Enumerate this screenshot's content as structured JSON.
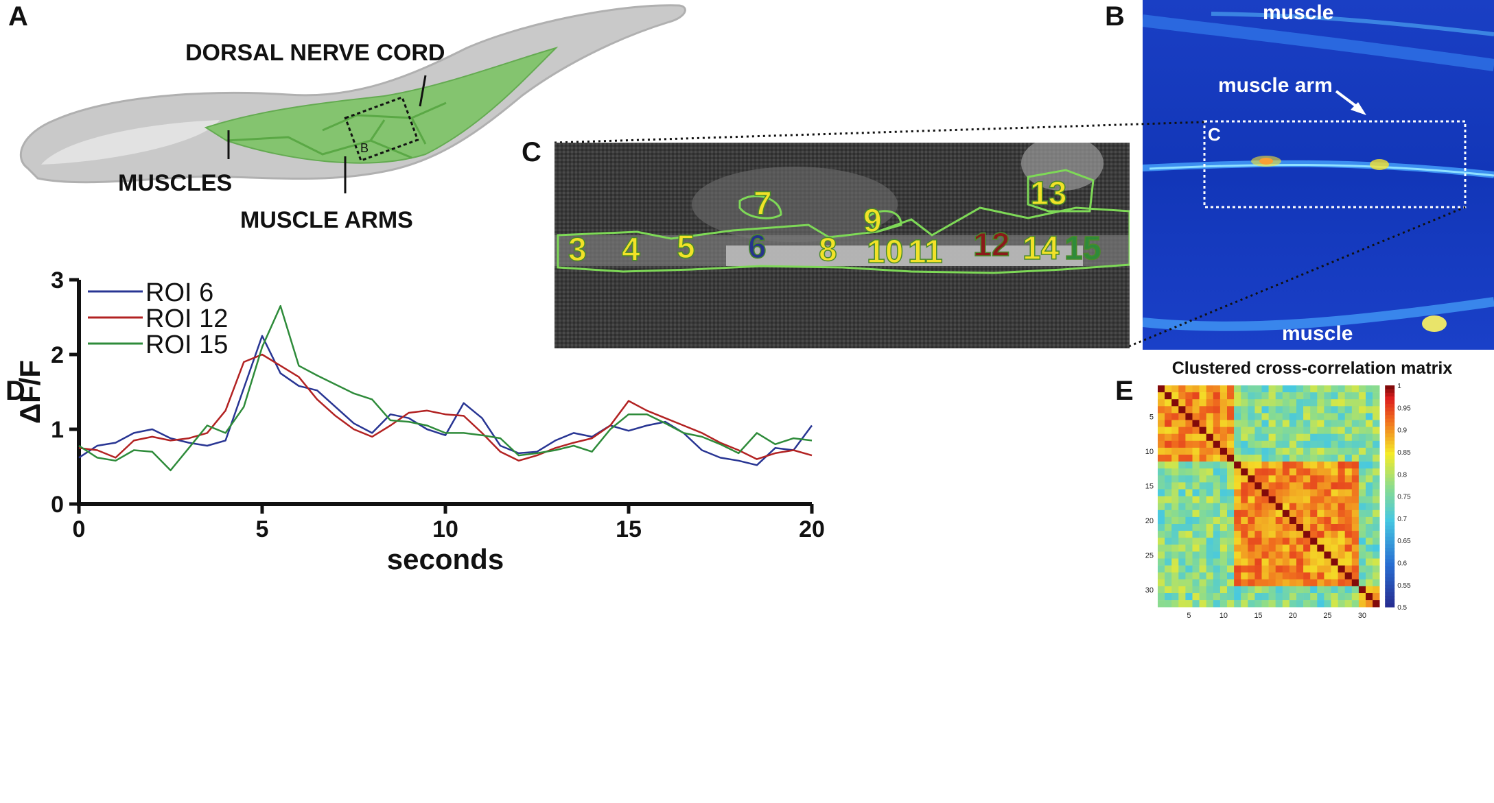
{
  "panels": {
    "a": {
      "letter": "A",
      "labels": {
        "dorsal_nerve_cord": "DORSAL NERVE CORD",
        "muscles": "MUSCLES",
        "muscle_arms": "MUSCLE ARMS",
        "inset": "B"
      }
    },
    "b": {
      "letter": "B",
      "labels": {
        "muscle_top": "muscle",
        "muscle_arm": "muscle arm",
        "muscle_bottom": "muscle",
        "inset": "C"
      }
    },
    "c": {
      "letter": "C",
      "rois": [
        {
          "label": "3",
          "color": "#f2e228"
        },
        {
          "label": "4",
          "color": "#f2e228"
        },
        {
          "label": "5",
          "color": "#f2e228"
        },
        {
          "label": "6",
          "color": "#27348b"
        },
        {
          "label": "7",
          "color": "#f2e228"
        },
        {
          "label": "8",
          "color": "#f2e228"
        },
        {
          "label": "9",
          "color": "#f2e228"
        },
        {
          "label": "10",
          "color": "#f2e228"
        },
        {
          "label": "11",
          "color": "#f2e228"
        },
        {
          "label": "12",
          "color": "#8b1a1a"
        },
        {
          "label": "13",
          "color": "#f2e228"
        },
        {
          "label": "14",
          "color": "#f2e228"
        },
        {
          "label": "15",
          "color": "#2e8b3a"
        }
      ]
    },
    "d": {
      "letter": "D"
    },
    "e": {
      "letter": "E"
    }
  },
  "chart_data": [
    {
      "type": "line",
      "xlabel": "seconds",
      "ylabel": "ΔF/F",
      "xlim": [
        0,
        20
      ],
      "ylim": [
        0,
        3
      ],
      "xticks": [
        0,
        5,
        10,
        15,
        20
      ],
      "yticks": [
        0,
        1,
        2,
        3
      ],
      "grid": false,
      "legend": "top-left",
      "x": [
        0,
        0.5,
        1,
        1.5,
        2,
        2.5,
        3,
        3.5,
        4,
        4.5,
        5,
        5.5,
        6,
        6.5,
        7,
        7.5,
        8,
        8.5,
        9,
        9.5,
        10,
        10.5,
        11,
        11.5,
        12,
        12.5,
        13,
        13.5,
        14,
        14.5,
        15,
        15.5,
        16,
        16.5,
        17,
        17.5,
        18,
        18.5,
        19,
        19.5,
        20
      ],
      "series": [
        {
          "name": "ROI 6",
          "color": "#283593",
          "values": [
            0.62,
            0.78,
            0.82,
            0.95,
            1.0,
            0.88,
            0.82,
            0.78,
            0.85,
            1.55,
            2.25,
            1.75,
            1.58,
            1.52,
            1.3,
            1.08,
            0.95,
            1.2,
            1.15,
            1.0,
            0.92,
            1.35,
            1.15,
            0.78,
            0.68,
            0.7,
            0.85,
            0.95,
            0.9,
            1.05,
            0.98,
            1.05,
            1.1,
            0.95,
            0.72,
            0.62,
            0.58,
            0.52,
            0.75,
            0.72,
            1.05
          ]
        },
        {
          "name": "ROI 12",
          "color": "#b22222",
          "values": [
            0.75,
            0.72,
            0.62,
            0.85,
            0.9,
            0.85,
            0.88,
            0.95,
            1.25,
            1.9,
            2.0,
            1.85,
            1.7,
            1.4,
            1.18,
            1.0,
            0.9,
            1.05,
            1.22,
            1.25,
            1.2,
            1.18,
            0.95,
            0.7,
            0.58,
            0.65,
            0.75,
            0.82,
            0.88,
            1.05,
            1.38,
            1.25,
            1.15,
            1.05,
            0.95,
            0.82,
            0.72,
            0.6,
            0.68,
            0.72,
            0.65
          ]
        },
        {
          "name": "ROI 15",
          "color": "#2e8b3a",
          "values": [
            0.78,
            0.62,
            0.58,
            0.72,
            0.7,
            0.45,
            0.75,
            1.05,
            0.95,
            1.3,
            2.1,
            2.65,
            1.85,
            1.72,
            1.6,
            1.48,
            1.4,
            1.12,
            1.1,
            1.05,
            0.95,
            0.95,
            0.92,
            0.88,
            0.65,
            0.68,
            0.72,
            0.78,
            0.7,
            1.0,
            1.2,
            1.2,
            1.08,
            0.95,
            0.9,
            0.8,
            0.68,
            0.95,
            0.8,
            0.88,
            0.85
          ]
        }
      ]
    },
    {
      "type": "heatmap",
      "title": "Clustered cross-correlation matrix",
      "size": 32,
      "xticks": [
        5,
        10,
        15,
        20,
        25,
        30
      ],
      "yticks": [
        5,
        10,
        15,
        20,
        25,
        30
      ],
      "colorbar_ticks": [
        "0.5",
        "0.55",
        "0.6",
        "0.65",
        "0.7",
        "0.75",
        "0.8",
        "0.85",
        "0.9",
        "0.95",
        "1"
      ],
      "colorbar_range": [
        0.5,
        1
      ],
      "clusters": [
        [
          1,
          11
        ],
        [
          12,
          29
        ],
        [
          30,
          32
        ]
      ]
    }
  ]
}
